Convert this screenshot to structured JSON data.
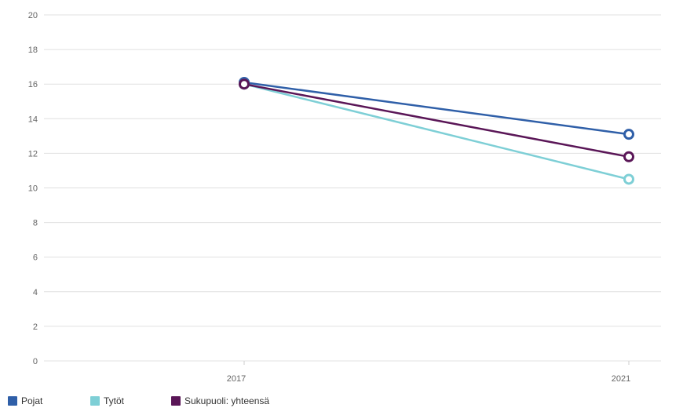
{
  "chart_data": {
    "type": "line",
    "x": [
      "2017",
      "2021"
    ],
    "ylim": [
      0,
      20
    ],
    "yticks": [
      "0",
      "2",
      "4",
      "6",
      "8",
      "10",
      "12",
      "14",
      "16",
      "18",
      "20"
    ],
    "grid": true,
    "legend_position": "bottom-left",
    "series": [
      {
        "name": "Pojat",
        "values": [
          16.1,
          13.1
        ],
        "color": "#2f5fa8"
      },
      {
        "name": "Tytöt",
        "values": [
          16.0,
          10.5
        ],
        "color": "#7ecfd6"
      },
      {
        "name": "Sukupuoli: yhteensä",
        "values": [
          16.0,
          11.8
        ],
        "color": "#5a1657"
      }
    ]
  }
}
